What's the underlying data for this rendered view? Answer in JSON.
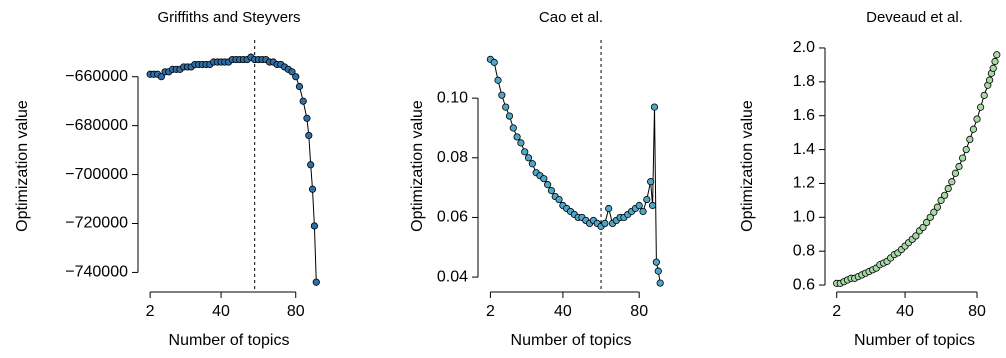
{
  "chart_data": [
    {
      "type": "scatter-line",
      "title": "Griffiths and Steyvers",
      "xlabel": "Number of topics",
      "ylabel": "Optimization value",
      "color": "#2f6ea6",
      "vline": 58,
      "x": [
        2,
        4,
        6,
        8,
        10,
        12,
        14,
        16,
        18,
        20,
        22,
        24,
        26,
        28,
        30,
        32,
        34,
        36,
        38,
        40,
        42,
        44,
        46,
        48,
        50,
        52,
        54,
        56,
        58,
        60,
        62,
        64,
        66,
        68,
        70,
        72,
        74,
        76,
        78,
        80,
        82,
        84,
        86,
        87,
        88,
        89,
        90,
        91
      ],
      "values": [
        -659000,
        -659000,
        -659000,
        -660000,
        -658000,
        -658000,
        -657000,
        -657000,
        -657000,
        -656000,
        -656000,
        -656000,
        -655000,
        -655000,
        -655000,
        -655000,
        -655000,
        -654000,
        -654000,
        -654000,
        -654000,
        -654000,
        -653000,
        -653000,
        -653000,
        -653000,
        -653000,
        -652000,
        -653000,
        -653000,
        -653000,
        -653000,
        -654000,
        -654000,
        -655000,
        -655000,
        -656000,
        -657000,
        -658000,
        -660000,
        -664000,
        -670000,
        -677000,
        -684000,
        -696000,
        -706000,
        -721000,
        -744000
      ],
      "xlim": [
        -4.5,
        93
      ],
      "ylim": [
        -748000,
        -645000
      ],
      "xticks": [
        2,
        40,
        80
      ],
      "yticks": [
        {
          "value": -660000,
          "label": "−660000"
        },
        {
          "value": -680000,
          "label": "−680000"
        },
        {
          "value": -700000,
          "label": "−700000"
        },
        {
          "value": -720000,
          "label": "−720000"
        },
        {
          "value": -740000,
          "label": "−740000"
        }
      ]
    },
    {
      "type": "scatter-line",
      "title": "Cao et al.",
      "xlabel": "Number of topics",
      "ylabel": "Optimization value",
      "color": "#4ea6c9",
      "vline": 60,
      "x": [
        2,
        4,
        6,
        8,
        10,
        12,
        14,
        16,
        18,
        20,
        22,
        24,
        26,
        28,
        30,
        32,
        34,
        36,
        38,
        40,
        42,
        44,
        46,
        48,
        50,
        52,
        54,
        56,
        58,
        60,
        62,
        64,
        66,
        68,
        70,
        72,
        74,
        76,
        78,
        80,
        82,
        84,
        86,
        87,
        88,
        89,
        90,
        91
      ],
      "values": [
        0.113,
        0.112,
        0.106,
        0.101,
        0.097,
        0.094,
        0.09,
        0.087,
        0.085,
        0.082,
        0.08,
        0.078,
        0.075,
        0.074,
        0.073,
        0.071,
        0.069,
        0.067,
        0.066,
        0.064,
        0.063,
        0.062,
        0.061,
        0.06,
        0.06,
        0.059,
        0.058,
        0.059,
        0.058,
        0.057,
        0.058,
        0.063,
        0.058,
        0.059,
        0.06,
        0.06,
        0.061,
        0.062,
        0.063,
        0.064,
        0.062,
        0.066,
        0.072,
        0.064,
        0.097,
        0.045,
        0.042,
        0.038
      ],
      "xlim": [
        -4.5,
        93
      ],
      "ylim": [
        0.035,
        0.1195
      ],
      "xticks": [
        2,
        40,
        80
      ],
      "yticks": [
        0.04,
        0.06,
        0.08,
        {
          "value": 0.1,
          "label": "0.10"
        }
      ]
    },
    {
      "type": "scatter-line",
      "title": "Deveaud et al.",
      "xlabel": "Number of topics",
      "ylabel": "Optimization value",
      "color": "#a6d9a6",
      "x": [
        2,
        4,
        6,
        8,
        10,
        12,
        14,
        16,
        18,
        20,
        22,
        24,
        26,
        28,
        30,
        32,
        34,
        36,
        38,
        40,
        42,
        44,
        46,
        48,
        50,
        52,
        54,
        56,
        58,
        60,
        62,
        64,
        66,
        68,
        70,
        72,
        74,
        76,
        78,
        80,
        82,
        84,
        86,
        87,
        88,
        89,
        90,
        91
      ],
      "values": [
        0.61,
        0.61,
        0.62,
        0.63,
        0.64,
        0.64,
        0.65,
        0.66,
        0.67,
        0.68,
        0.69,
        0.7,
        0.72,
        0.73,
        0.74,
        0.76,
        0.78,
        0.79,
        0.81,
        0.83,
        0.85,
        0.87,
        0.89,
        0.92,
        0.94,
        0.97,
        1.0,
        1.03,
        1.06,
        1.1,
        1.13,
        1.17,
        1.21,
        1.26,
        1.3,
        1.35,
        1.4,
        1.46,
        1.52,
        1.58,
        1.65,
        1.72,
        1.78,
        1.81,
        1.85,
        1.88,
        1.92,
        1.96
      ],
      "xlim": [
        -4.5,
        95
      ],
      "ylim": [
        0.559,
        2.047
      ],
      "xticks": [
        2,
        40,
        80
      ],
      "yticks": [
        0.6,
        0.8,
        {
          "value": 1.0,
          "label": "1.0"
        },
        1.2,
        1.4,
        1.6,
        1.8,
        {
          "value": 2.0,
          "label": "2.0"
        }
      ]
    }
  ]
}
